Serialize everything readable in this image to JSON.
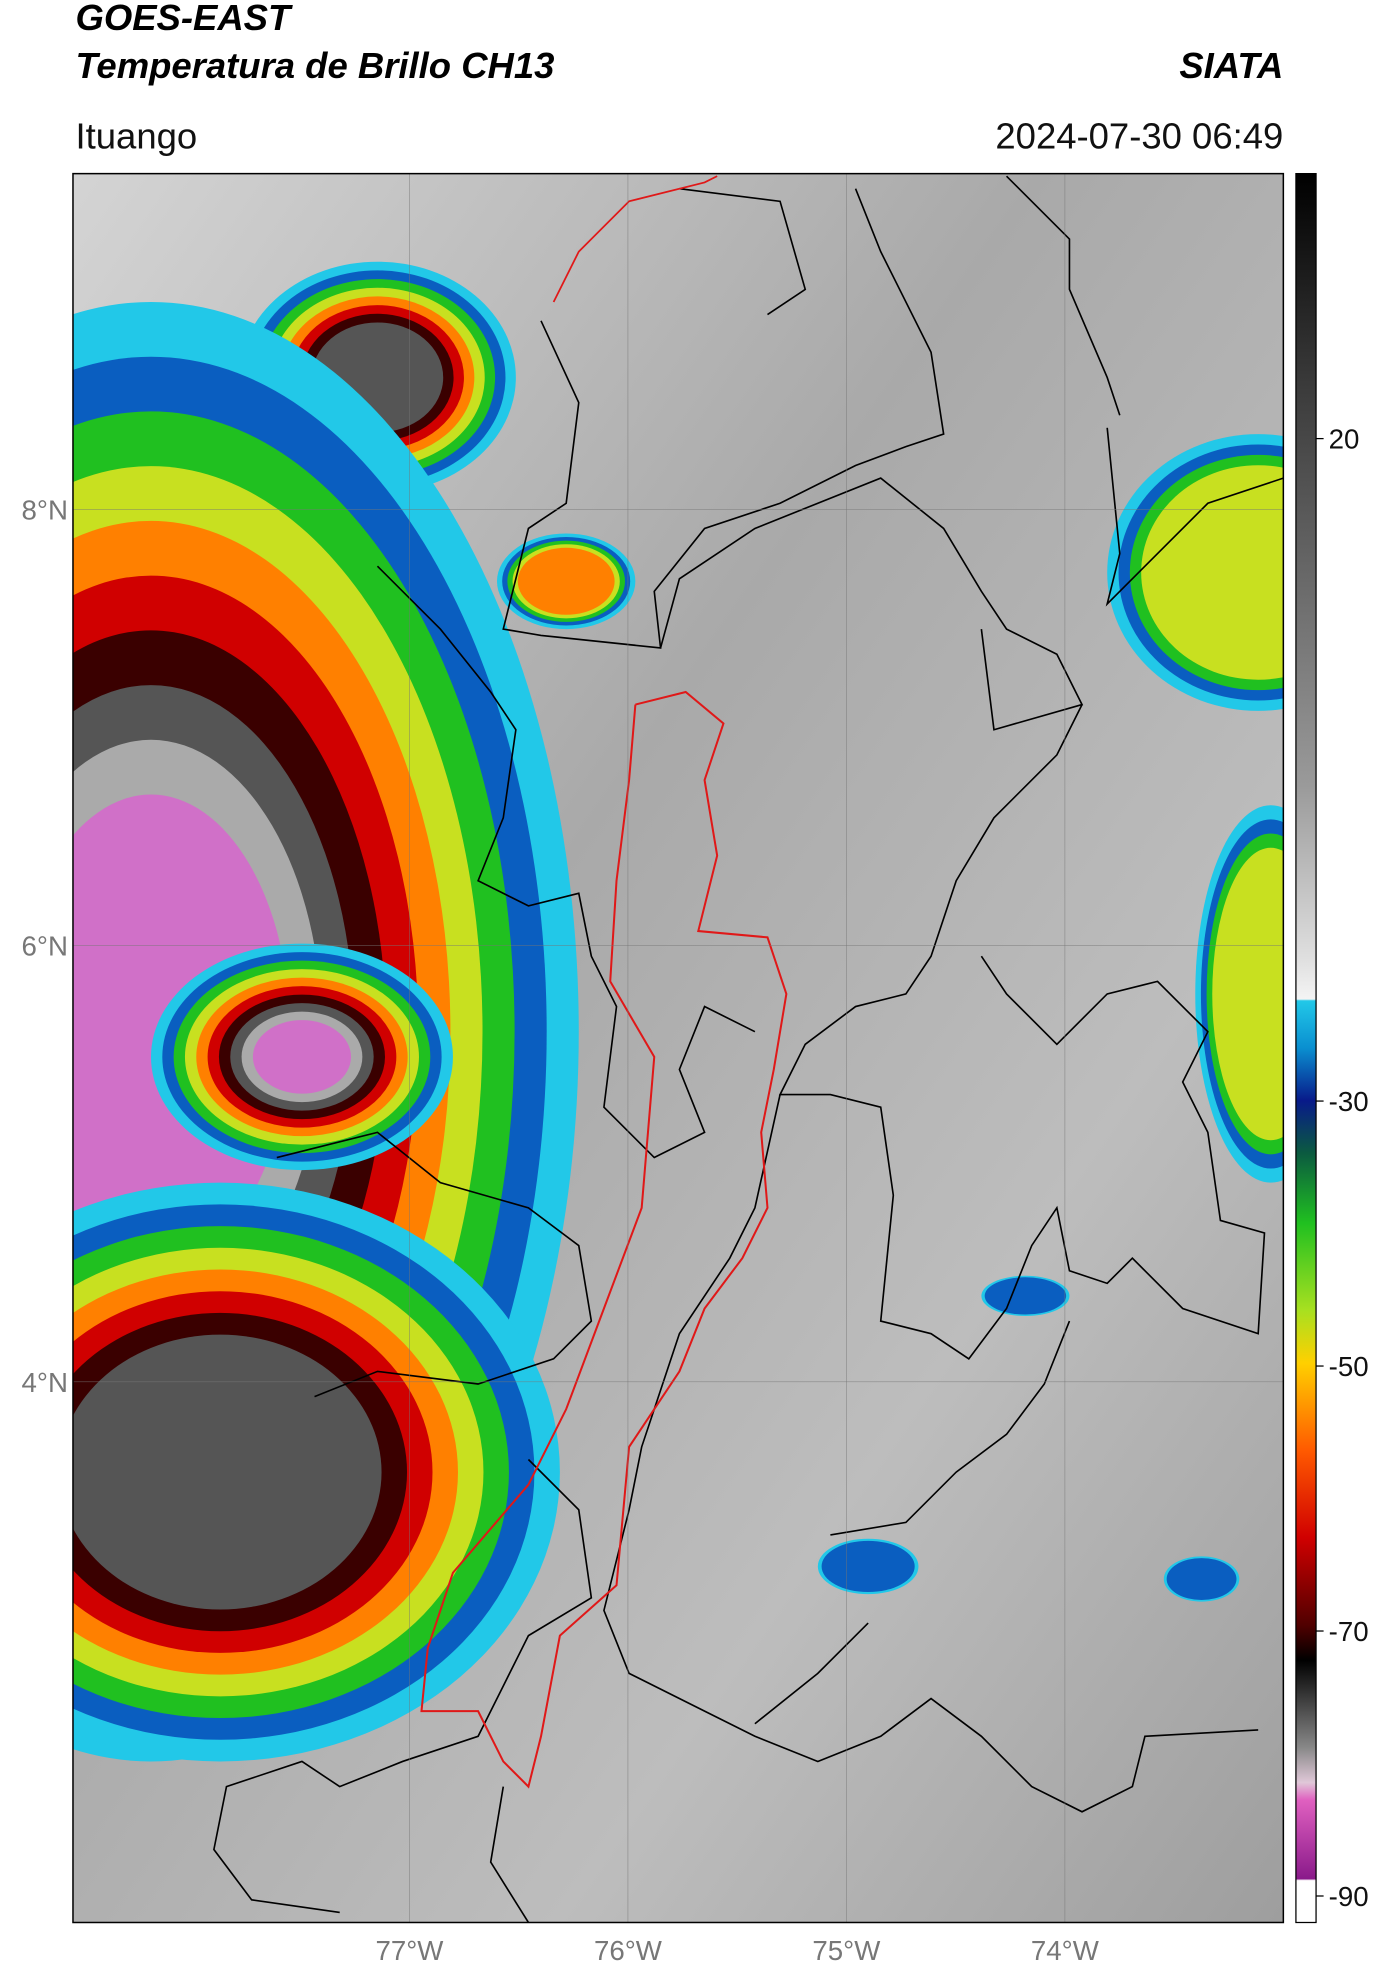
{
  "header": {
    "title": "GOES-EAST",
    "subtitle": "Temperatura de Brillo CH13",
    "brand": "SIATA",
    "location": "Ituango",
    "datetime": "2024-07-30 06:49"
  },
  "map": {
    "lat_range": [
      1.52,
      9.54
    ],
    "lon_range": [
      -78.54,
      -73.0
    ],
    "lat_ticks": [
      {
        "value": 8,
        "label": "8°N"
      },
      {
        "value": 6,
        "label": "6°N"
      },
      {
        "value": 4,
        "label": "4°N"
      }
    ],
    "lon_ticks": [
      {
        "value": -77,
        "label": "77°W"
      },
      {
        "value": -76,
        "label": "76°W"
      },
      {
        "value": -75,
        "label": "75°W"
      },
      {
        "value": -74,
        "label": "74°W"
      }
    ]
  },
  "colorbar": {
    "range": [
      -92,
      40
    ],
    "ticks": [
      20,
      -30,
      -50,
      -70,
      -90
    ]
  }
}
